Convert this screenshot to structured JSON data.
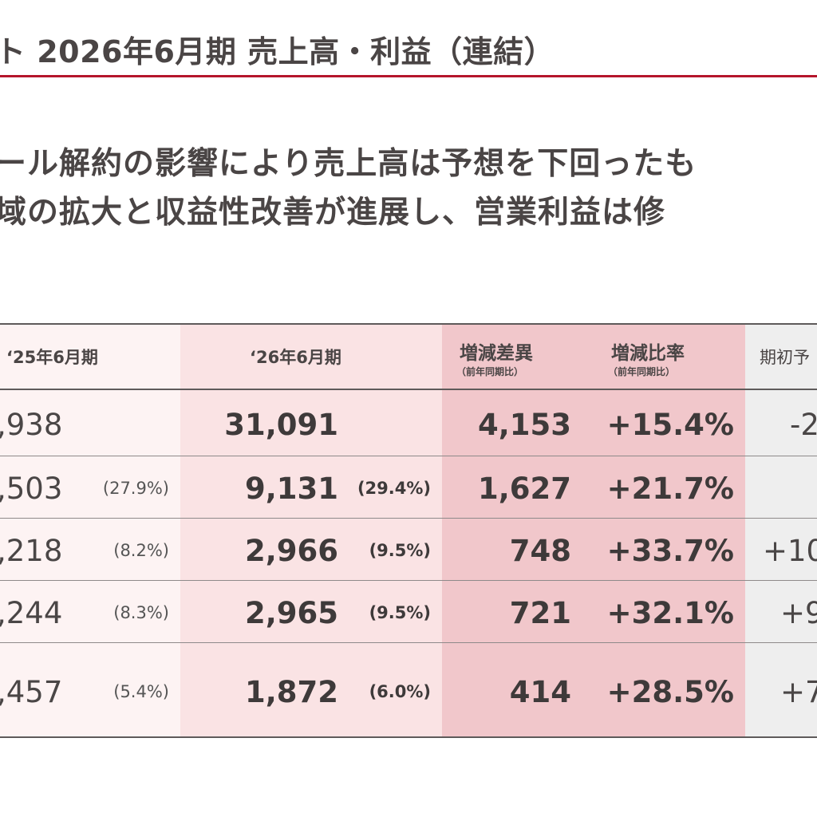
{
  "header": {
    "title": "ト 2026年6月期 売上高・利益（連結）"
  },
  "lead": {
    "line1": "ール解約の影響により売上高は予想を下回ったも",
    "line2": "域の拡大と収益性改善が進展し、営業利益は修"
  },
  "table": {
    "columns": {
      "prev": "‘25年6月期",
      "cur": "‘26年6月期",
      "diff": "増減差異",
      "diff_sub": "（前年同期比）",
      "rate": "増減比率",
      "rate_sub": "（前年同期比）",
      "forecast": "期初予"
    },
    "rows": [
      {
        "prev": ",938",
        "prev_pct": "",
        "cur": "31,091",
        "cur_pct": "",
        "diff": "4,153",
        "rate": "+15.4%",
        "forecast": "-2"
      },
      {
        "prev": ",503",
        "prev_pct": "(27.9%)",
        "cur": "9,131",
        "cur_pct": "(29.4%)",
        "diff": "1,627",
        "rate": "+21.7%",
        "forecast": ""
      },
      {
        "prev": ",218",
        "prev_pct": "(8.2%)",
        "cur": "2,966",
        "cur_pct": "(9.5%)",
        "diff": "748",
        "rate": "+33.7%",
        "forecast": "+10"
      },
      {
        "prev": ",244",
        "prev_pct": "(8.3%)",
        "cur": "2,965",
        "cur_pct": "(9.5%)",
        "diff": "721",
        "rate": "+32.1%",
        "forecast": "+9"
      },
      {
        "prev": ",457",
        "prev_pct": "(5.4%)",
        "cur": "1,872",
        "cur_pct": "(6.0%)",
        "diff": "414",
        "rate": "+28.5%",
        "forecast": "+7"
      }
    ]
  },
  "colors": {
    "accent_rule": "#b5152b",
    "col_prev_bg": "#fdf3f3",
    "col_cur_bg": "#fae3e4",
    "col_diff_bg": "#f1c7cb",
    "col_forecast_bg": "#eeeeee"
  }
}
